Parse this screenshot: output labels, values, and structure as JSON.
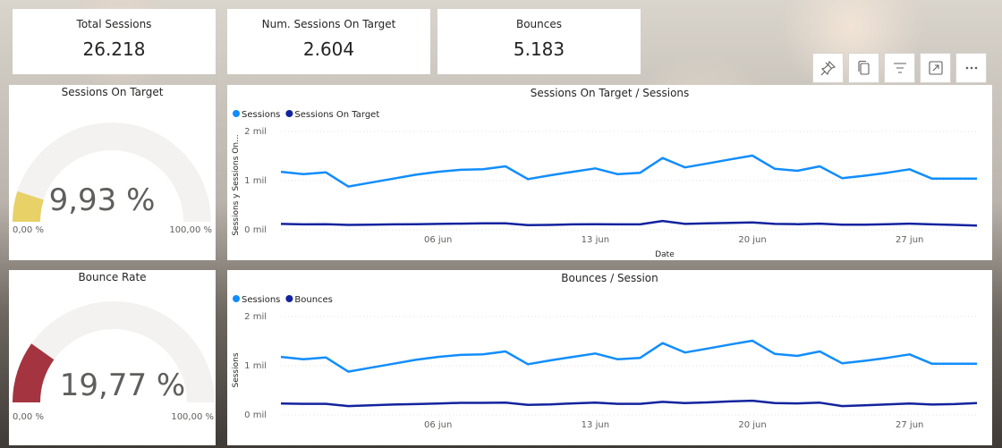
{
  "kpis": [
    {
      "title": "Total Sessions",
      "value": "26.218"
    },
    {
      "title": "Num. Sessions On Target",
      "value": "2.604"
    },
    {
      "title": "Bounces",
      "value": "5.183"
    }
  ],
  "gauges": [
    {
      "title": "Sessions On Target",
      "value_label": "9,93 %",
      "value": 9.93,
      "min_label": "0,00 %",
      "max_label": "100,00 %",
      "color": "#E8D166"
    },
    {
      "title": "Bounce Rate",
      "value_label": "19,77 %",
      "value": 19.77,
      "min_label": "0,00 %",
      "max_label": "100,00 %",
      "color": "#A4343F"
    }
  ],
  "toolbar": {
    "icons": [
      "pin-icon",
      "copy-icon",
      "filter-icon",
      "focus-mode-icon",
      "more-options-icon"
    ]
  },
  "chart_data": [
    {
      "type": "line",
      "title": "Sessions On Target / Sessions",
      "xlabel": "Date",
      "ylabel": "Sessions y Sessions On...",
      "x_ticks": [
        "06 jun",
        "13 jun",
        "20 jun",
        "27 jun"
      ],
      "y_ticks": [
        "0 mil",
        "1 mil",
        "2 mil"
      ],
      "ylim": [
        0,
        2000
      ],
      "grid": true,
      "legend_position": "top-left",
      "x": [
        "30 may",
        "31 may",
        "01 jun",
        "02 jun",
        "03 jun",
        "04 jun",
        "05 jun",
        "06 jun",
        "07 jun",
        "08 jun",
        "09 jun",
        "10 jun",
        "11 jun",
        "12 jun",
        "13 jun",
        "14 jun",
        "15 jun",
        "16 jun",
        "17 jun",
        "18 jun",
        "19 jun",
        "20 jun",
        "21 jun",
        "22 jun",
        "23 jun",
        "24 jun",
        "25 jun",
        "26 jun",
        "27 jun",
        "28 jun",
        "29 jun",
        "30 jun"
      ],
      "series": [
        {
          "name": "Sessions",
          "color": "#118DFF",
          "values": [
            1180,
            1130,
            1170,
            880,
            960,
            1040,
            1120,
            1180,
            1220,
            1230,
            1290,
            1030,
            1110,
            1180,
            1250,
            1130,
            1160,
            1460,
            1270,
            1350,
            1430,
            1510,
            1240,
            1200,
            1290,
            1050,
            1100,
            1160,
            1230,
            1040,
            1040,
            1040
          ]
        },
        {
          "name": "Sessions On Target",
          "color": "#12239E",
          "values": [
            120,
            110,
            115,
            100,
            105,
            110,
            115,
            120,
            125,
            130,
            130,
            95,
            100,
            110,
            115,
            110,
            110,
            180,
            120,
            130,
            140,
            150,
            120,
            115,
            125,
            105,
            105,
            115,
            125,
            110,
            100,
            85
          ]
        }
      ]
    },
    {
      "type": "line",
      "title": "Bounces / Session",
      "xlabel": "",
      "ylabel": "Sessions",
      "x_ticks": [
        "06 jun",
        "13 jun",
        "20 jun",
        "27 jun"
      ],
      "y_ticks": [
        "0 mil",
        "1 mil",
        "2 mil"
      ],
      "ylim": [
        0,
        2000
      ],
      "grid": true,
      "legend_position": "top-left",
      "x": [
        "30 may",
        "31 may",
        "01 jun",
        "02 jun",
        "03 jun",
        "04 jun",
        "05 jun",
        "06 jun",
        "07 jun",
        "08 jun",
        "09 jun",
        "10 jun",
        "11 jun",
        "12 jun",
        "13 jun",
        "14 jun",
        "15 jun",
        "16 jun",
        "17 jun",
        "18 jun",
        "19 jun",
        "20 jun",
        "21 jun",
        "22 jun",
        "23 jun",
        "24 jun",
        "25 jun",
        "26 jun",
        "27 jun",
        "28 jun",
        "29 jun",
        "30 jun"
      ],
      "series": [
        {
          "name": "Sessions",
          "color": "#118DFF",
          "values": [
            1180,
            1130,
            1170,
            880,
            960,
            1040,
            1120,
            1180,
            1220,
            1230,
            1290,
            1030,
            1110,
            1180,
            1250,
            1130,
            1160,
            1460,
            1270,
            1350,
            1430,
            1510,
            1240,
            1200,
            1290,
            1050,
            1100,
            1160,
            1230,
            1040,
            1040,
            1040
          ]
        },
        {
          "name": "Bounces",
          "color": "#12239E",
          "values": [
            230,
            225,
            225,
            180,
            195,
            210,
            220,
            230,
            245,
            245,
            250,
            205,
            215,
            235,
            250,
            225,
            225,
            265,
            240,
            255,
            275,
            290,
            240,
            235,
            250,
            180,
            195,
            215,
            230,
            210,
            220,
            240
          ]
        }
      ]
    }
  ]
}
